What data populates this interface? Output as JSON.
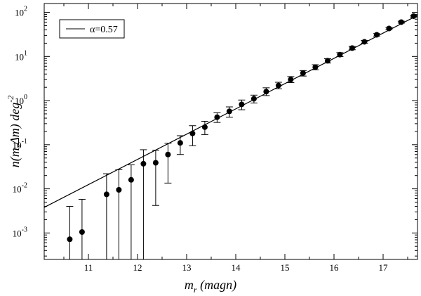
{
  "chart_data": {
    "type": "scatter",
    "title": "",
    "xlabel": "m",
    "xlabel_sub": "r",
    "xlabel_rest": " (magn)",
    "ylabel": "n(m,Δm) deg",
    "ylabel_sup": "-2",
    "xlim": [
      10.1,
      17.7
    ],
    "ylim_log10": [
      -3.6,
      2.2
    ],
    "yscale": "log",
    "grid": false,
    "legend_position": "top-left",
    "x_ticks": [
      11,
      12,
      13,
      14,
      15,
      16,
      17
    ],
    "x_tick_labels": [
      "11",
      "12",
      "13",
      "14",
      "15",
      "16",
      "17"
    ],
    "y_ticks": [
      -3,
      -2,
      -1,
      0,
      1,
      2
    ],
    "y_tick_labels": [
      {
        "base": "10",
        "exp": "-3"
      },
      {
        "base": "10",
        "exp": "-2"
      },
      {
        "base": "10",
        "exp": "-1"
      },
      {
        "base": "10",
        "exp": "0"
      },
      {
        "base": "10",
        "exp": "1"
      },
      {
        "base": "10",
        "exp": "2"
      }
    ],
    "fit_line": {
      "name": "α=0.57",
      "slope_log10": 0.57,
      "x": [
        10.1,
        17.7
      ],
      "y_log10": [
        -2.42,
        1.93
      ]
    },
    "points": [
      {
        "x": 10.62,
        "y": 0.00072,
        "lo": 4e-05,
        "hi": 0.004
      },
      {
        "x": 10.87,
        "y": 0.00105,
        "lo": 4e-05,
        "hi": 0.0058
      },
      {
        "x": 11.37,
        "y": 0.0075,
        "lo": 4e-05,
        "hi": 0.022
      },
      {
        "x": 11.62,
        "y": 0.0095,
        "lo": 4e-05,
        "hi": 0.027
      },
      {
        "x": 11.87,
        "y": 0.016,
        "lo": 4e-05,
        "hi": 0.035
      },
      {
        "x": 12.12,
        "y": 0.037,
        "lo": 4e-05,
        "hi": 0.077
      },
      {
        "x": 12.37,
        "y": 0.039,
        "lo": 0.0042,
        "hi": 0.075
      },
      {
        "x": 12.62,
        "y": 0.06,
        "lo": 0.0135,
        "hi": 0.108
      },
      {
        "x": 12.87,
        "y": 0.11,
        "lo": 0.06,
        "hi": 0.16
      },
      {
        "x": 13.12,
        "y": 0.18,
        "lo": 0.095,
        "hi": 0.27
      },
      {
        "x": 13.37,
        "y": 0.25,
        "lo": 0.17,
        "hi": 0.34
      },
      {
        "x": 13.62,
        "y": 0.42,
        "lo": 0.32,
        "hi": 0.53
      },
      {
        "x": 13.87,
        "y": 0.57,
        "lo": 0.42,
        "hi": 0.72
      },
      {
        "x": 14.12,
        "y": 0.82,
        "lo": 0.62,
        "hi": 1.03
      },
      {
        "x": 14.37,
        "y": 1.1,
        "lo": 0.88,
        "hi": 1.33
      },
      {
        "x": 14.62,
        "y": 1.6,
        "lo": 1.3,
        "hi": 1.95
      },
      {
        "x": 14.87,
        "y": 2.2,
        "lo": 1.85,
        "hi": 2.6
      },
      {
        "x": 15.12,
        "y": 3.0,
        "lo": 2.55,
        "hi": 3.5
      },
      {
        "x": 15.37,
        "y": 4.2,
        "lo": 3.6,
        "hi": 4.8
      },
      {
        "x": 15.62,
        "y": 5.7,
        "lo": 5.0,
        "hi": 6.5
      },
      {
        "x": 15.87,
        "y": 8.0,
        "lo": 7.1,
        "hi": 8.9
      },
      {
        "x": 16.12,
        "y": 11.0,
        "lo": 9.9,
        "hi": 12.2
      },
      {
        "x": 16.37,
        "y": 15.5,
        "lo": 14.2,
        "hi": 16.9
      },
      {
        "x": 16.62,
        "y": 21.5,
        "lo": 20.0,
        "hi": 23.1
      },
      {
        "x": 16.87,
        "y": 31.0,
        "lo": 29.0,
        "hi": 33.0
      },
      {
        "x": 17.12,
        "y": 43.0,
        "lo": 40.5,
        "hi": 45.5
      },
      {
        "x": 17.37,
        "y": 60.0,
        "lo": 57.0,
        "hi": 63.0
      },
      {
        "x": 17.62,
        "y": 82.0,
        "lo": 78.0,
        "hi": 86.0
      }
    ],
    "colors": {
      "line": "#000000",
      "marker": "#000000",
      "background": "#ffffff"
    }
  }
}
